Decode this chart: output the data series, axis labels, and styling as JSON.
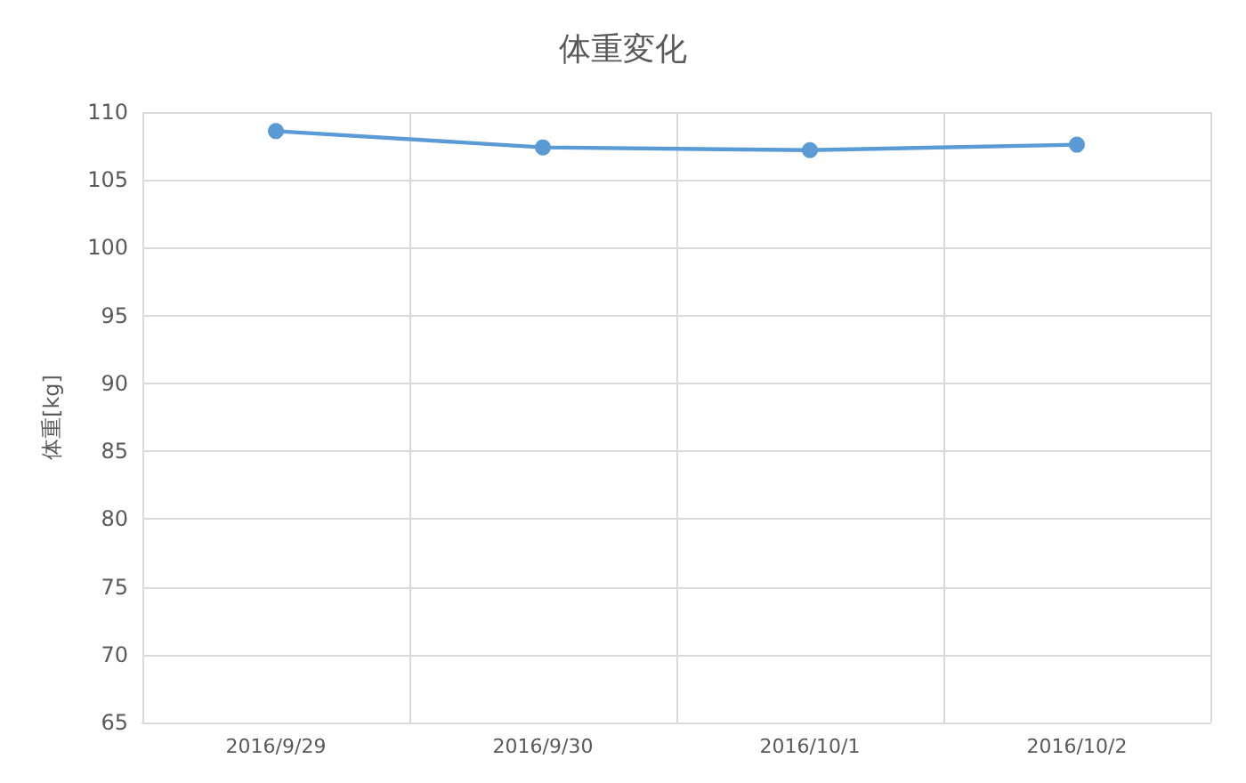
{
  "chart_data": {
    "type": "line",
    "title": "体重変化",
    "ylabel": "体重[kg]",
    "categories": [
      "2016/9/29",
      "2016/9/30",
      "2016/10/1",
      "2016/10/2"
    ],
    "series": [
      {
        "color": "#5b9bd5",
        "values": [
          108.6,
          107.4,
          107.2,
          107.6
        ]
      }
    ],
    "ylim": [
      65,
      110
    ],
    "yticks": [
      65,
      70,
      75,
      80,
      85,
      90,
      95,
      100,
      105,
      110
    ],
    "grid": true,
    "marker": "circle",
    "line_style": "solid"
  }
}
